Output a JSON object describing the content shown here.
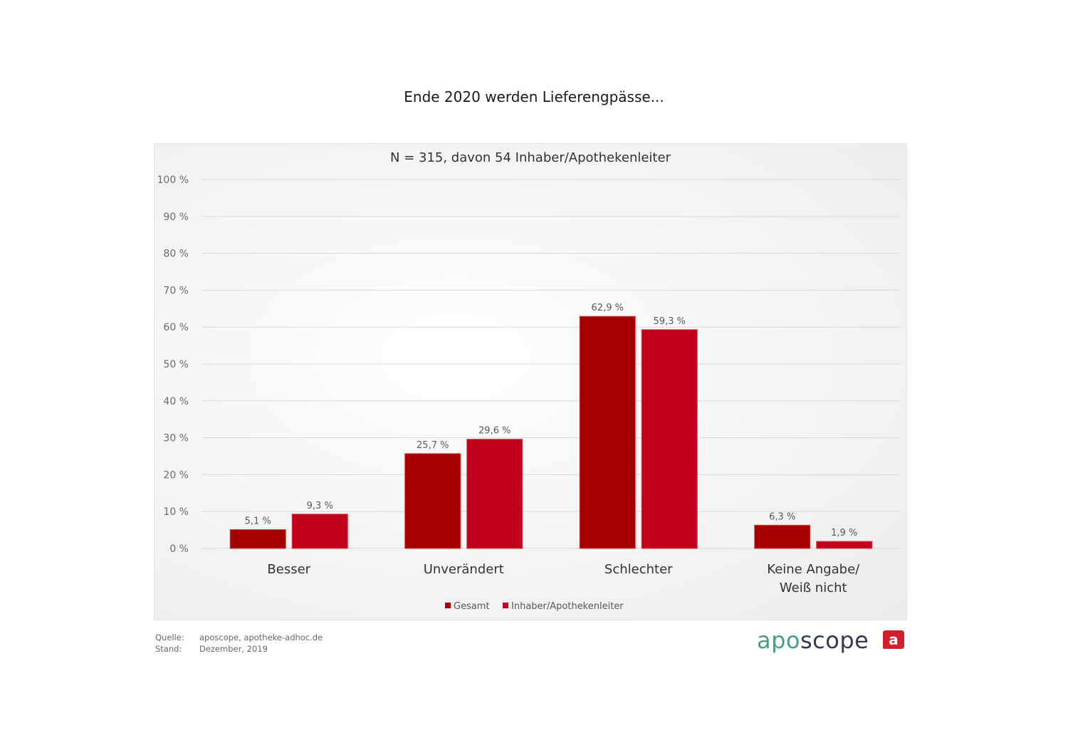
{
  "title": "Ende 2020 werden Lieferengpässe...",
  "subtitle": "N = 315, davon 54 Inhaber/Apothekenleiter",
  "footer": {
    "source_label": "Quelle:",
    "source_value": "aposcope, apotheke-adhoc.de",
    "date_label": "Stand:",
    "date_value": "Dezember,  2019"
  },
  "logo": {
    "part1": "apo",
    "part2": "scope",
    "icon_letter": "a"
  },
  "colors": {
    "gesamt": "#a50000",
    "inhaber": "#c0001d",
    "grid": "#d9d9d9"
  },
  "chart_data": {
    "type": "bar",
    "title": "Ende 2020 werden Lieferengpässe...",
    "subtitle": "N = 315, davon 54 Inhaber/Apothekenleiter",
    "categories": [
      [
        "Besser"
      ],
      [
        "Unverändert"
      ],
      [
        "Schlechter"
      ],
      [
        "Keine Angabe/",
        "Weiß nicht"
      ]
    ],
    "series": [
      {
        "name": "Gesamt",
        "values": [
          5.1,
          25.7,
          62.9,
          6.3
        ],
        "labels": [
          "5,1 %",
          "25,7 %",
          "62,9 %",
          "6,3 %"
        ]
      },
      {
        "name": "Inhaber/Apothekenleiter",
        "values": [
          9.3,
          29.6,
          59.3,
          1.9
        ],
        "labels": [
          "9,3 %",
          "29,6 %",
          "59,3 %",
          "1,9 %"
        ]
      }
    ],
    "yticks": [
      "0 %",
      "10 %",
      "20 %",
      "30 %",
      "40 %",
      "50 %",
      "60 %",
      "70 %",
      "80 %",
      "90 %",
      "100 %"
    ],
    "ylim": [
      0,
      100
    ],
    "grid": true,
    "legend_position": "bottom-center"
  }
}
